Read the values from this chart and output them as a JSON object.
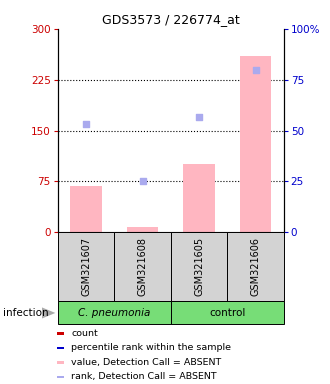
{
  "title": "GDS3573 / 226774_at",
  "samples": [
    "GSM321607",
    "GSM321608",
    "GSM321605",
    "GSM321606"
  ],
  "bar_values": [
    68,
    8,
    100,
    260
  ],
  "bar_color": "#ffb6c1",
  "dot_values": [
    160,
    75,
    170,
    240
  ],
  "dot_color": "#aaaaee",
  "left_yticks": [
    0,
    75,
    150,
    225,
    300
  ],
  "right_yticklabels": [
    "0",
    "25",
    "50",
    "75",
    "100%"
  ],
  "right_ytick_positions": [
    0,
    75,
    150,
    225,
    300
  ],
  "left_axis_color": "#cc0000",
  "right_axis_color": "#0000cc",
  "dotted_lines": [
    75,
    150,
    225
  ],
  "legend_items": [
    {
      "label": "count",
      "color": "#cc0000"
    },
    {
      "label": "percentile rank within the sample",
      "color": "#0000cc"
    },
    {
      "label": "value, Detection Call = ABSENT",
      "color": "#ffb6c1"
    },
    {
      "label": "rank, Detection Call = ABSENT",
      "color": "#aaaaee"
    }
  ],
  "groups_info": [
    {
      "text": "C. pneumonia",
      "start": 0,
      "end": 2,
      "color": "#77dd77",
      "italic": true
    },
    {
      "text": "control",
      "start": 2,
      "end": 4,
      "color": "#77dd77",
      "italic": false
    }
  ],
  "sample_box_color": "#d3d3d3",
  "infection_label": "infection"
}
